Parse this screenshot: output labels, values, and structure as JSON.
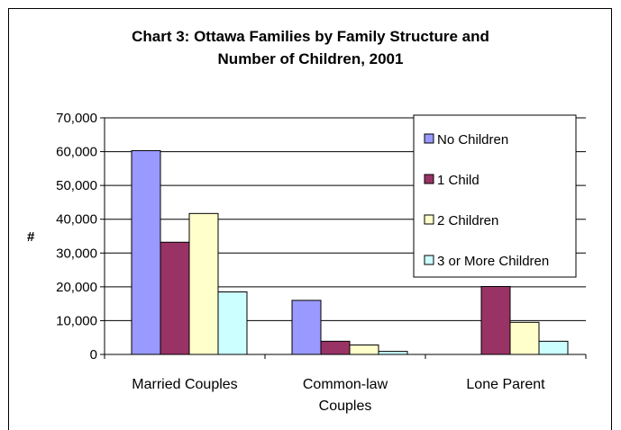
{
  "chart_data": {
    "type": "bar",
    "title": [
      "Chart 3:  Ottawa Families by Family Structure and",
      "Number of Children, 2001"
    ],
    "ylabel": "#",
    "xlabel": "",
    "ylim": [
      0,
      70000
    ],
    "yticks": [
      0,
      10000,
      20000,
      30000,
      40000,
      50000,
      60000,
      70000
    ],
    "ytick_labels": [
      "0",
      "10,000",
      "20,000",
      "30,000",
      "40,000",
      "50,000",
      "60,000",
      "70,000"
    ],
    "categories": [
      [
        "Married Couples"
      ],
      [
        "Common-law",
        "Couples"
      ],
      [
        "Lone Parent"
      ]
    ],
    "series": [
      {
        "name": "No Children",
        "color": "#9999ff",
        "values": [
          60300,
          16000,
          0
        ]
      },
      {
        "name": "1 Child",
        "color": "#993366",
        "values": [
          33200,
          3900,
          20100
        ]
      },
      {
        "name": "2 Children",
        "color": "#ffffcc",
        "values": [
          41700,
          2800,
          9500
        ]
      },
      {
        "name": "3 or More Children",
        "color": "#ccffff",
        "values": [
          18500,
          900,
          3900
        ]
      }
    ],
    "grid": true,
    "legend_position": "top-right"
  }
}
